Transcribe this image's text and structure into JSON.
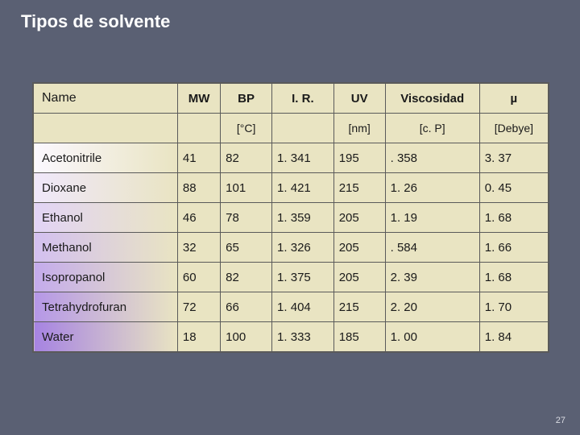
{
  "slide": {
    "title": "Tipos de solvente",
    "page_number": "27",
    "background_color": "#5a6073",
    "title_color": "#ffffff"
  },
  "table": {
    "background_color": "#e9e4c2",
    "border_color": "#5a5a5a",
    "header_row1": {
      "name": "Name",
      "mw": "MW",
      "bp": "BP",
      "ir": "I. R.",
      "uv": "UV",
      "viscosity": "Viscosidad",
      "mu": "µ"
    },
    "header_row2": {
      "name": "",
      "mw": "",
      "bp": "[°C]",
      "ir": "",
      "uv": "[nm]",
      "viscosity": "[c. P]",
      "mu": "[Debye]"
    },
    "rows": [
      {
        "name": "Acetonitrile",
        "mw": "41",
        "bp": "82",
        "ir": "1. 341",
        "uv": "195",
        "viscosity": ". 358",
        "mu": "3. 37"
      },
      {
        "name": "Dioxane",
        "mw": "88",
        "bp": "101",
        "ir": "1. 421",
        "uv": "215",
        "viscosity": "1. 26",
        "mu": "0. 45"
      },
      {
        "name": "Ethanol",
        "mw": "46",
        "bp": "78",
        "ir": "1. 359",
        "uv": "205",
        "viscosity": "1. 19",
        "mu": "1. 68"
      },
      {
        "name": "Methanol",
        "mw": "32",
        "bp": "65",
        "ir": "1. 326",
        "uv": "205",
        "viscosity": ". 584",
        "mu": "1. 66"
      },
      {
        "name": "Isopropanol",
        "mw": "60",
        "bp": "82",
        "ir": "1. 375",
        "uv": "205",
        "viscosity": "2. 39",
        "mu": "1. 68"
      },
      {
        "name": "Tetrahydrofuran",
        "mw": "72",
        "bp": "66",
        "ir": "1. 404",
        "uv": "215",
        "viscosity": "2. 20",
        "mu": "1. 70"
      },
      {
        "name": "Water",
        "mw": "18",
        "bp": "100",
        "ir": "1. 333",
        "uv": "185",
        "viscosity": "1. 00",
        "mu": "1. 84"
      }
    ],
    "name_col_gradient_from": [
      "#fbf8ff",
      "#f0e8fb",
      "#e2d4f6",
      "#d3c0f0",
      "#c4abec",
      "#b597e7",
      "#a683e2"
    ],
    "name_col_gradient_to": "#e9e4c2"
  }
}
